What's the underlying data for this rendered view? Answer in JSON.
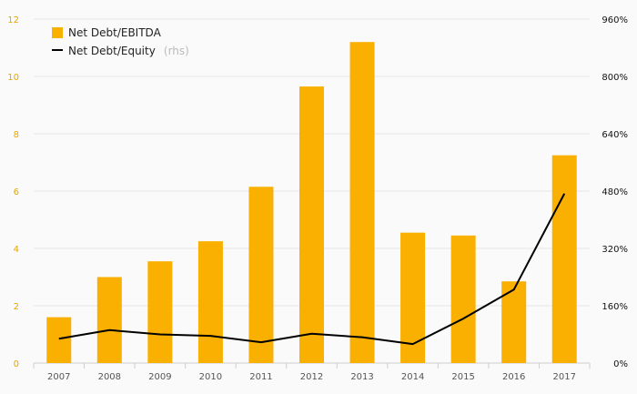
{
  "chart_data": {
    "type": "bar",
    "categories": [
      "2007",
      "2008",
      "2009",
      "2010",
      "2011",
      "2012",
      "2013",
      "2014",
      "2015",
      "2016",
      "2017"
    ],
    "series": [
      {
        "name": "Net Debt/EBITDA",
        "type": "bar",
        "axis": "left",
        "color": "#f9b000",
        "values": [
          1.6,
          3.0,
          3.55,
          4.25,
          6.15,
          9.65,
          11.2,
          4.55,
          4.45,
          2.85,
          7.25
        ]
      },
      {
        "name": "Net Debt/Equity",
        "name_suffix": "(rhs)",
        "type": "line",
        "axis": "right",
        "color": "#000000",
        "values": [
          68,
          92,
          80,
          76,
          58,
          82,
          72,
          53,
          124,
          205,
          473
        ]
      }
    ],
    "y_left": {
      "min": 0,
      "max": 12,
      "ticks": [
        "0",
        "2",
        "4",
        "6",
        "8",
        "10",
        "12"
      ]
    },
    "y_right": {
      "min": 0,
      "max": 960,
      "ticks": [
        "0%",
        "160%",
        "320%",
        "480%",
        "640%",
        "800%",
        "960%"
      ]
    },
    "grid": true,
    "legend_position": "top-left"
  }
}
